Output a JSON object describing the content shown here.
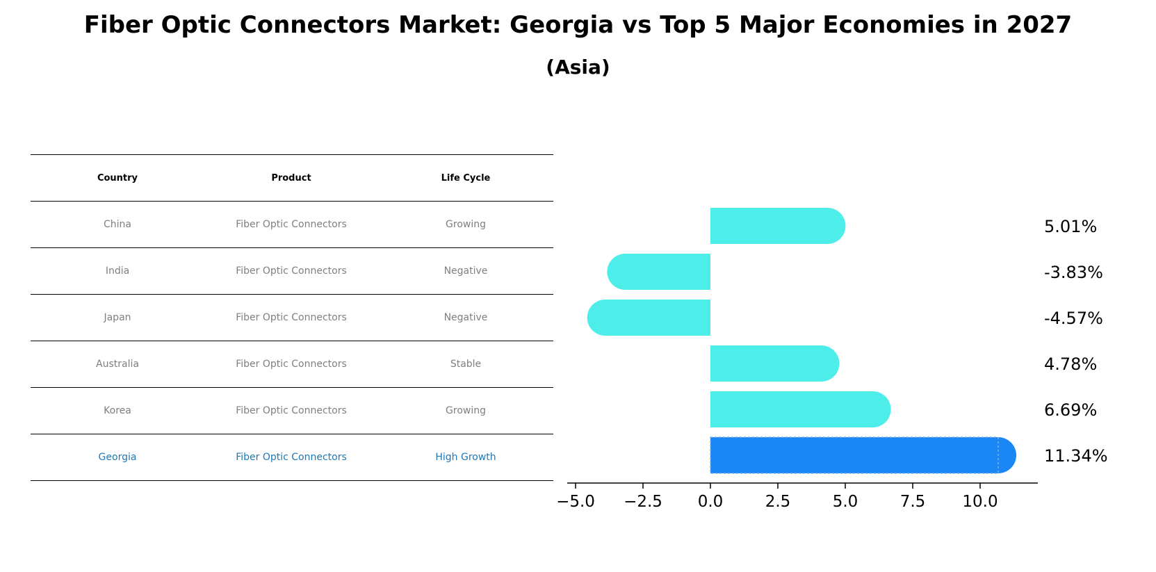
{
  "title": "Fiber Optic Connectors Market: Georgia vs Top 5 Major Economies in 2027",
  "subtitle": "(Asia)",
  "table": {
    "headers": [
      "Country",
      "Product",
      "Life Cycle"
    ],
    "rows": [
      [
        "China",
        "Fiber Optic Connectors",
        "Growing"
      ],
      [
        "India",
        "Fiber Optic Connectors",
        "Negative"
      ],
      [
        "Japan",
        "Fiber Optic Connectors",
        "Negative"
      ],
      [
        "Australia",
        "Fiber Optic Connectors",
        "Stable"
      ],
      [
        "Korea",
        "Fiber Optic Connectors",
        "Growing"
      ],
      [
        "Georgia",
        "Fiber Optic Connectors",
        "High Growth"
      ]
    ]
  },
  "chart_data": {
    "type": "bar",
    "orientation": "horizontal",
    "categories": [
      "China",
      "India",
      "Japan",
      "Australia",
      "Korea",
      "Georgia"
    ],
    "values": [
      5.01,
      -3.83,
      -4.57,
      4.78,
      6.69,
      11.34
    ],
    "labels": [
      "5.01%",
      "-3.83%",
      "-4.57%",
      "4.78%",
      "6.69%",
      "11.34%"
    ],
    "xlim": [
      -5.2,
      12.0
    ],
    "xticks": [
      -5.0,
      -2.5,
      0.0,
      2.5,
      5.0,
      7.5,
      10.0
    ],
    "xtick_labels": [
      "−5.0",
      "−2.5",
      "0.0",
      "2.5",
      "5.0",
      "7.5",
      "10.0"
    ],
    "highlight": "Georgia",
    "colors": {
      "default": "#4deeea",
      "highlight": "#1b87f4"
    }
  }
}
